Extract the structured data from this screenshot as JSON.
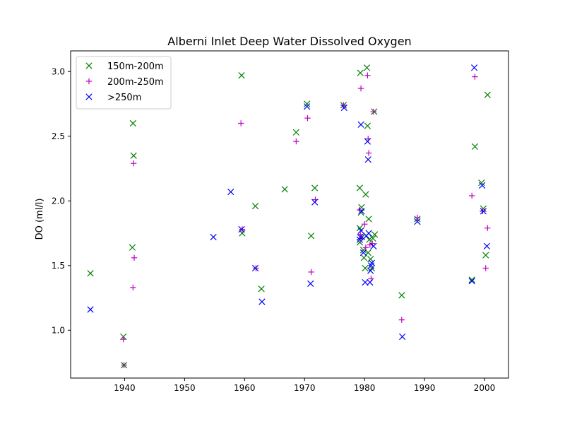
{
  "chart_data": {
    "type": "scatter",
    "title": "Alberni Inlet Deep Water Dissolved Oxygen",
    "xlabel": "",
    "ylabel": "DO (ml/l)",
    "xlim": [
      1931,
      2004
    ],
    "ylim": [
      0.63,
      3.16
    ],
    "xticks": [
      1940,
      1950,
      1960,
      1970,
      1980,
      1990,
      2000
    ],
    "yticks": [
      1.0,
      1.5,
      2.0,
      2.5,
      3.0
    ],
    "xtick_labels": [
      "1940",
      "1950",
      "1960",
      "1970",
      "1980",
      "1990",
      "2000"
    ],
    "ytick_labels": [
      "1.0",
      "1.5",
      "2.0",
      "2.5",
      "3.0"
    ],
    "grid": false,
    "legend_position": "upper-left",
    "series": [
      {
        "name": "150m-200m",
        "color": "#008000",
        "marker": "x",
        "points": [
          [
            1934.3,
            1.44
          ],
          [
            1939.8,
            0.95
          ],
          [
            1939.9,
            0.73
          ],
          [
            1941.3,
            1.64
          ],
          [
            1941.4,
            2.6
          ],
          [
            1941.5,
            2.35
          ],
          [
            1959.5,
            2.97
          ],
          [
            1959.6,
            1.75
          ],
          [
            1961.8,
            1.96
          ],
          [
            1962.8,
            1.32
          ],
          [
            1966.7,
            2.09
          ],
          [
            1968.6,
            2.53
          ],
          [
            1970.4,
            2.75
          ],
          [
            1971.1,
            1.73
          ],
          [
            1971.7,
            2.1
          ],
          [
            1976.5,
            2.74
          ],
          [
            1979.2,
            2.1
          ],
          [
            1979.3,
            2.99
          ],
          [
            1979.2,
            1.79
          ],
          [
            1979.5,
            1.95
          ],
          [
            1979.4,
            1.91
          ],
          [
            1979.2,
            1.68
          ],
          [
            1979.6,
            1.72
          ],
          [
            1979.8,
            1.62
          ],
          [
            1979.9,
            1.56
          ],
          [
            1980.1,
            1.48
          ],
          [
            1980.2,
            2.05
          ],
          [
            1980.3,
            1.73
          ],
          [
            1980.4,
            3.03
          ],
          [
            1980.5,
            2.58
          ],
          [
            1980.6,
            1.6
          ],
          [
            1980.7,
            1.86
          ],
          [
            1980.8,
            1.7
          ],
          [
            1981.0,
            1.55
          ],
          [
            1981.2,
            1.48
          ],
          [
            1981.4,
            1.71
          ],
          [
            1981.6,
            2.69
          ],
          [
            1981.7,
            1.74
          ],
          [
            1986.2,
            1.27
          ],
          [
            1988.8,
            1.86
          ],
          [
            1997.9,
            1.39
          ],
          [
            1998.4,
            2.42
          ],
          [
            1999.5,
            2.14
          ],
          [
            1999.8,
            1.94
          ],
          [
            2000.2,
            1.58
          ],
          [
            2000.5,
            2.82
          ]
        ]
      },
      {
        "name": "200m-250m",
        "color": "#bf00bf",
        "marker": "+",
        "points": [
          [
            1939.8,
            0.93
          ],
          [
            1939.9,
            0.73
          ],
          [
            1941.4,
            1.33
          ],
          [
            1941.5,
            2.29
          ],
          [
            1941.6,
            1.56
          ],
          [
            1959.4,
            2.6
          ],
          [
            1959.6,
            1.78
          ],
          [
            1961.9,
            1.48
          ],
          [
            1968.6,
            2.46
          ],
          [
            1970.5,
            2.64
          ],
          [
            1971.1,
            1.45
          ],
          [
            1971.8,
            2.01
          ],
          [
            1976.5,
            2.74
          ],
          [
            1979.4,
            2.87
          ],
          [
            1979.2,
            1.93
          ],
          [
            1979.3,
            1.74
          ],
          [
            1979.5,
            1.71
          ],
          [
            1980.0,
            1.82
          ],
          [
            1980.2,
            1.64
          ],
          [
            1980.5,
            2.97
          ],
          [
            1980.6,
            2.48
          ],
          [
            1980.7,
            2.37
          ],
          [
            1980.9,
            1.66
          ],
          [
            1981.1,
            1.4
          ],
          [
            1981.3,
            1.67
          ],
          [
            1981.5,
            2.69
          ],
          [
            1986.2,
            1.08
          ],
          [
            1988.8,
            1.87
          ],
          [
            1997.9,
            2.04
          ],
          [
            1998.4,
            2.96
          ],
          [
            1999.7,
            1.92
          ],
          [
            2000.2,
            1.48
          ],
          [
            2000.5,
            1.79
          ]
        ]
      },
      {
        "name": ">250m",
        "color": "#0000ff",
        "marker": "x",
        "points": [
          [
            1934.3,
            1.16
          ],
          [
            1954.8,
            1.72
          ],
          [
            1957.7,
            2.07
          ],
          [
            1959.5,
            1.78
          ],
          [
            1961.8,
            1.48
          ],
          [
            1962.9,
            1.22
          ],
          [
            1970.4,
            2.73
          ],
          [
            1971.0,
            1.36
          ],
          [
            1971.7,
            1.99
          ],
          [
            1976.6,
            2.72
          ],
          [
            1979.2,
            1.7
          ],
          [
            1979.3,
            1.72
          ],
          [
            1979.4,
            1.77
          ],
          [
            1979.5,
            1.92
          ],
          [
            1979.4,
            2.59
          ],
          [
            1979.8,
            1.6
          ],
          [
            1980.1,
            1.37
          ],
          [
            1980.3,
            1.73
          ],
          [
            1980.5,
            2.46
          ],
          [
            1980.6,
            2.32
          ],
          [
            1980.7,
            1.75
          ],
          [
            1980.9,
            1.37
          ],
          [
            1981.0,
            1.46
          ],
          [
            1981.1,
            1.5
          ],
          [
            1981.2,
            1.52
          ],
          [
            1981.5,
            1.65
          ],
          [
            1986.3,
            0.95
          ],
          [
            1988.8,
            1.84
          ],
          [
            1997.9,
            1.38
          ],
          [
            1998.3,
            3.03
          ],
          [
            1999.6,
            2.12
          ],
          [
            1999.8,
            1.92
          ],
          [
            2000.4,
            1.65
          ]
        ]
      }
    ]
  }
}
